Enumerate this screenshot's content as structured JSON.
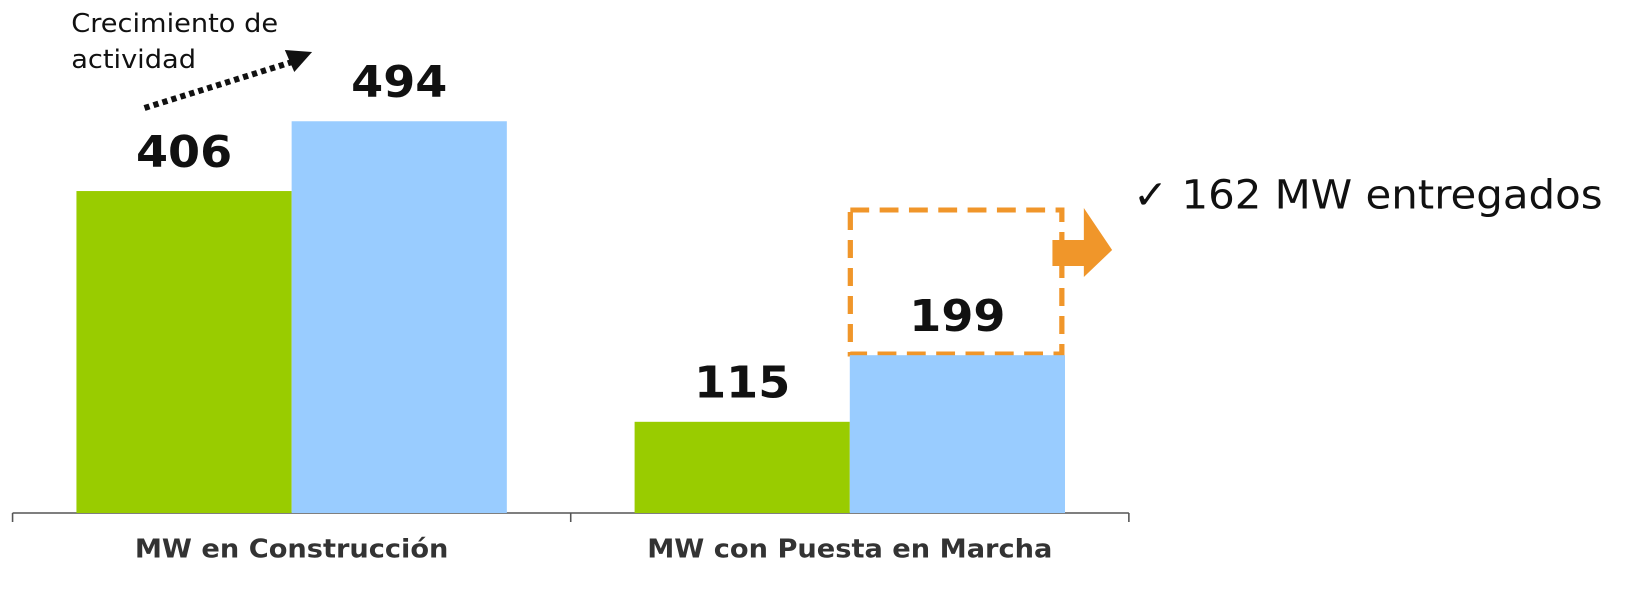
{
  "chart_data": {
    "type": "bar",
    "categories": [
      "MW en Construcción",
      "MW con Puesta en Marcha"
    ],
    "series": [
      {
        "color": "#99cc00",
        "values": [
          406,
          115
        ]
      },
      {
        "color": "#99ccff",
        "values": [
          494,
          199
        ]
      }
    ],
    "ylim": [
      0,
      500
    ],
    "annotations": [
      "Crecimiento de\nactividad",
      "✓ 162 MW  entregados"
    ]
  }
}
